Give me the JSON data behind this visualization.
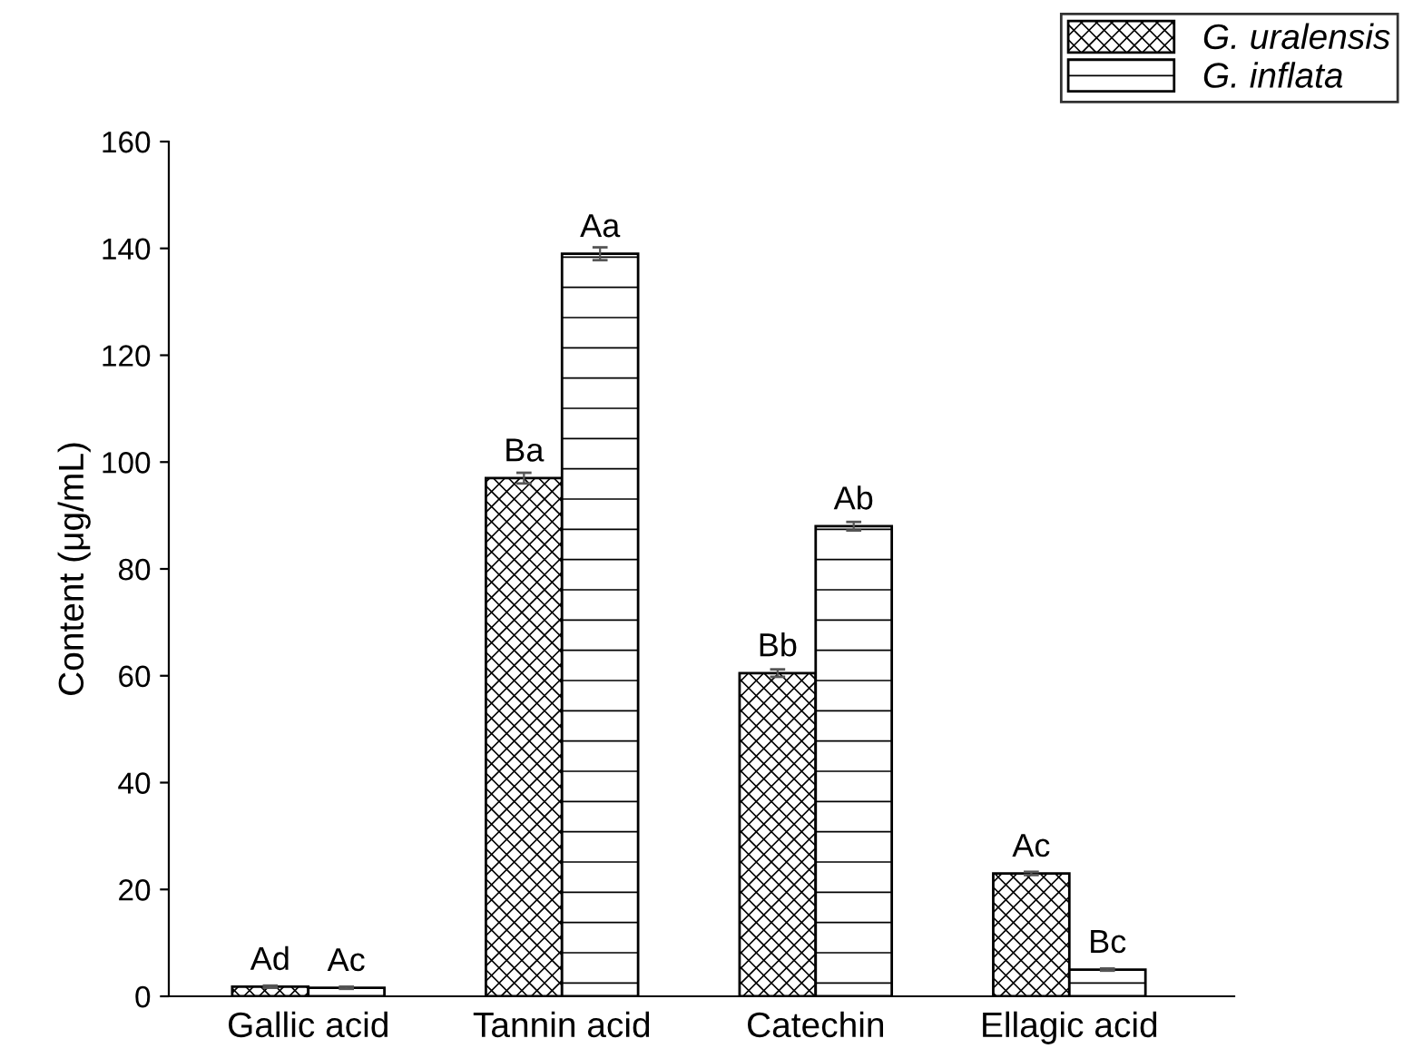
{
  "chart_data": {
    "type": "bar",
    "ylabel": "Content (μg/mL)",
    "categories": [
      "Gallic acid",
      "Tannin acid",
      "Catechin",
      "Ellagic acid"
    ],
    "series": [
      {
        "name": "G. uralensis",
        "color": "#000000",
        "values": [
          1.8,
          97,
          60.5,
          23
        ],
        "errors": [
          0.2,
          1,
          0.7,
          0.3
        ],
        "value_labels": [
          "Ad",
          "Ba",
          "Bb",
          "Ac"
        ]
      },
      {
        "name": "G. inflata",
        "color": "#000000",
        "values": [
          1.6,
          139,
          88,
          5
        ],
        "errors": [
          0.2,
          1.2,
          0.8,
          0.2
        ],
        "value_labels": [
          "Ac",
          "Aa",
          "Ab",
          "Bc"
        ]
      }
    ],
    "ylim": [
      0,
      160
    ],
    "yticks": [
      0,
      20,
      40,
      60,
      80,
      100,
      120,
      140,
      160
    ],
    "grid": false,
    "legend": "top right"
  }
}
